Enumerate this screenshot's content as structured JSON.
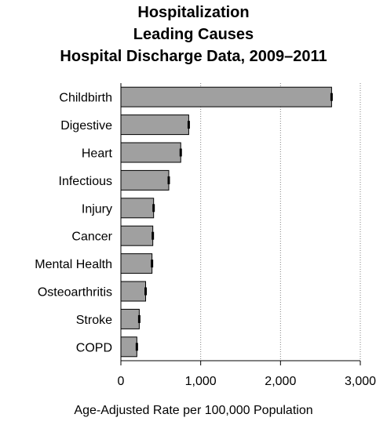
{
  "chart_data": {
    "type": "bar",
    "orientation": "horizontal",
    "title": "Hospitalization",
    "subtitle": [
      "Leading Causes",
      "Hospital Discharge Data, 2009–2011"
    ],
    "categories": [
      "Childbirth",
      "Digestive",
      "Heart",
      "Infectious",
      "Injury",
      "Cancer",
      "Mental Health",
      "Osteoarthritis",
      "Stroke",
      "COPD"
    ],
    "values": [
      2640,
      850,
      750,
      600,
      410,
      400,
      390,
      310,
      230,
      200
    ],
    "error_bars": true,
    "xlabel": "Age-Adjusted Rate per 100,000 Population",
    "xlim": [
      0,
      3000
    ],
    "xticks": [
      0,
      1000,
      2000,
      3000
    ],
    "xtick_labels": [
      "0",
      "1,000",
      "2,000",
      "3,000"
    ],
    "grid": "vertical dotted",
    "colors": {
      "bar": "#a0a0a0",
      "bar_edge": "#000000",
      "grid": "#808080"
    }
  }
}
